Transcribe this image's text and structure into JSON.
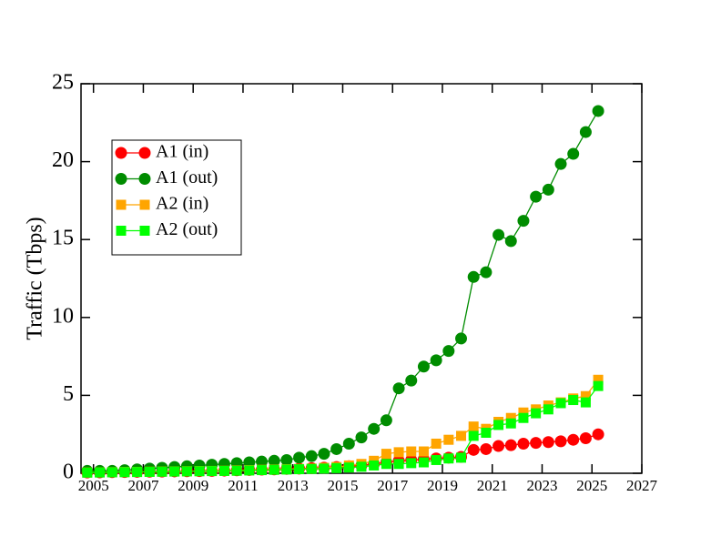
{
  "chart_data": {
    "type": "line",
    "y_label": "Traffic (Tbps)",
    "x": [
      2004.75,
      2005.25,
      2005.75,
      2006.25,
      2006.75,
      2007.25,
      2007.75,
      2008.25,
      2008.75,
      2009.25,
      2009.75,
      2010.25,
      2010.75,
      2011.25,
      2011.75,
      2012.25,
      2012.75,
      2013.25,
      2013.75,
      2014.25,
      2014.75,
      2015.25,
      2015.75,
      2016.25,
      2016.75,
      2017.25,
      2017.75,
      2018.25,
      2018.75,
      2019.25,
      2019.75,
      2020.25,
      2020.75,
      2021.25,
      2021.75,
      2022.25,
      2022.75,
      2023.25,
      2023.75,
      2024.25,
      2024.75,
      2025.25
    ],
    "series": [
      {
        "name": "A1 (in)",
        "color": "#ff0000",
        "marker": "circle",
        "values": [
          0.05,
          0.06,
          0.07,
          0.08,
          0.09,
          0.1,
          0.11,
          0.12,
          0.13,
          0.14,
          0.15,
          0.17,
          0.19,
          0.21,
          0.23,
          0.25,
          0.28,
          0.3,
          0.33,
          0.36,
          0.4,
          0.45,
          0.5,
          0.6,
          0.7,
          0.8,
          0.85,
          0.9,
          0.95,
          1.0,
          1.05,
          1.5,
          1.55,
          1.75,
          1.8,
          1.9,
          1.95,
          2.0,
          2.05,
          2.15,
          2.25,
          2.5
        ]
      },
      {
        "name": "A1 (out)",
        "color": "#008c00",
        "marker": "circle",
        "values": [
          0.15,
          0.15,
          0.15,
          0.2,
          0.25,
          0.3,
          0.35,
          0.4,
          0.45,
          0.5,
          0.55,
          0.6,
          0.65,
          0.7,
          0.75,
          0.8,
          0.85,
          1.0,
          1.1,
          1.25,
          1.55,
          1.9,
          2.3,
          2.85,
          3.4,
          5.45,
          5.95,
          6.85,
          7.25,
          7.85,
          8.65,
          12.6,
          12.9,
          15.3,
          14.9,
          16.2,
          17.75,
          18.2,
          19.85,
          20.5,
          21.9,
          23.25
        ]
      },
      {
        "name": "A2 (in)",
        "color": "#ffa500",
        "marker": "square",
        "values": [
          0.05,
          0.06,
          0.07,
          0.08,
          0.09,
          0.1,
          0.11,
          0.12,
          0.13,
          0.14,
          0.15,
          0.16,
          0.18,
          0.2,
          0.22,
          0.24,
          0.26,
          0.28,
          0.3,
          0.35,
          0.4,
          0.5,
          0.6,
          0.8,
          1.25,
          1.35,
          1.4,
          1.4,
          1.9,
          2.15,
          2.4,
          3.0,
          2.85,
          3.3,
          3.55,
          3.9,
          4.1,
          4.35,
          4.55,
          4.8,
          4.95,
          6.0
        ]
      },
      {
        "name": "A2 (out)",
        "color": "#00ff00",
        "marker": "square",
        "values": [
          0.04,
          0.05,
          0.06,
          0.07,
          0.08,
          0.09,
          0.1,
          0.11,
          0.12,
          0.13,
          0.14,
          0.15,
          0.16,
          0.18,
          0.2,
          0.22,
          0.24,
          0.26,
          0.28,
          0.3,
          0.33,
          0.37,
          0.42,
          0.5,
          0.6,
          0.6,
          0.65,
          0.7,
          0.85,
          0.95,
          1.0,
          2.4,
          2.6,
          3.1,
          3.2,
          3.55,
          3.85,
          4.1,
          4.5,
          4.7,
          4.55,
          5.6
        ]
      }
    ],
    "xlim": [
      2004.5,
      2027
    ],
    "xticks": [
      2005,
      2007,
      2009,
      2011,
      2013,
      2015,
      2017,
      2019,
      2021,
      2023,
      2025,
      2027
    ],
    "ylim": [
      0,
      25
    ],
    "yticks": [
      0,
      5,
      10,
      15,
      20,
      25
    ],
    "legend": "upper-left",
    "grid": false
  }
}
